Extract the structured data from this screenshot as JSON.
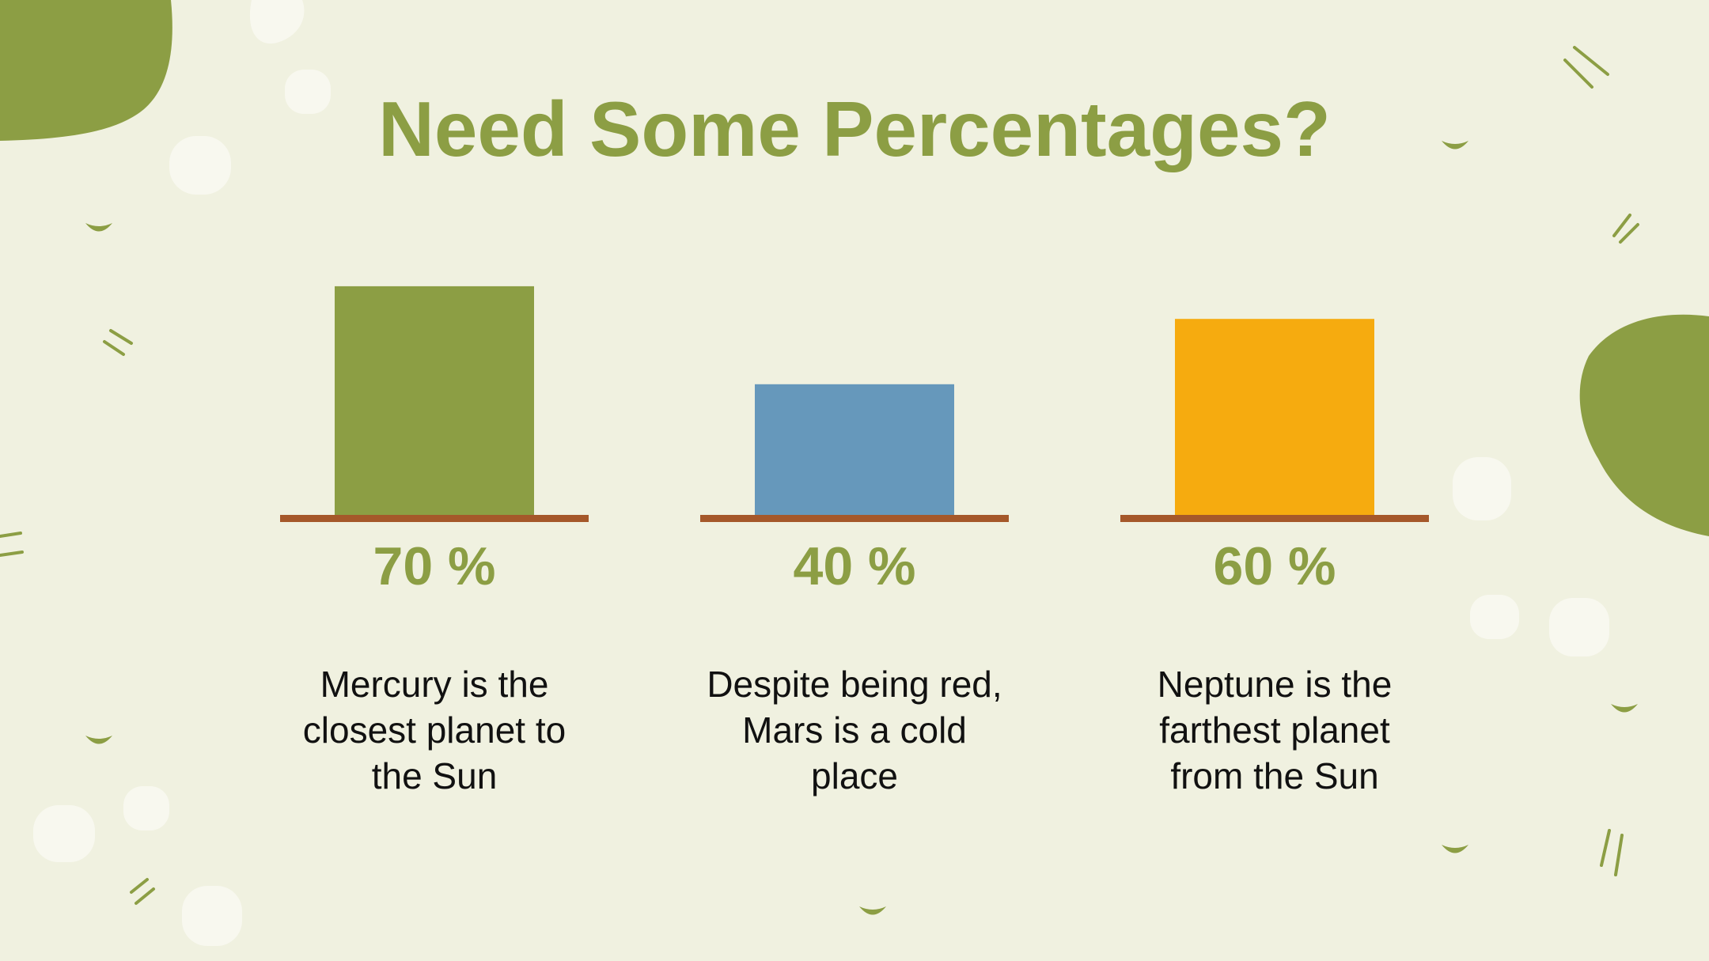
{
  "title": "Need Some Percentages?",
  "colors": {
    "background": "#f0f1e0",
    "accent": "#8c9e44",
    "baseline": "#a5582a",
    "blob": "#8c9e44",
    "pebble": "#f8f8ef"
  },
  "chart_data": {
    "type": "bar",
    "categories": [
      "Mercury",
      "Mars",
      "Neptune"
    ],
    "values": [
      70,
      40,
      60
    ],
    "value_labels": [
      "70 %",
      "40 %",
      "60 %"
    ],
    "unit": "%",
    "ylim": [
      0,
      100
    ],
    "bar_colors": [
      "#8c9e44",
      "#6698bb",
      "#f6ab0f"
    ],
    "descriptions": [
      "Mercury is the closest planet  to the Sun",
      "Despite being red, Mars is a cold place",
      "Neptune is the farthest planet from the Sun"
    ]
  }
}
